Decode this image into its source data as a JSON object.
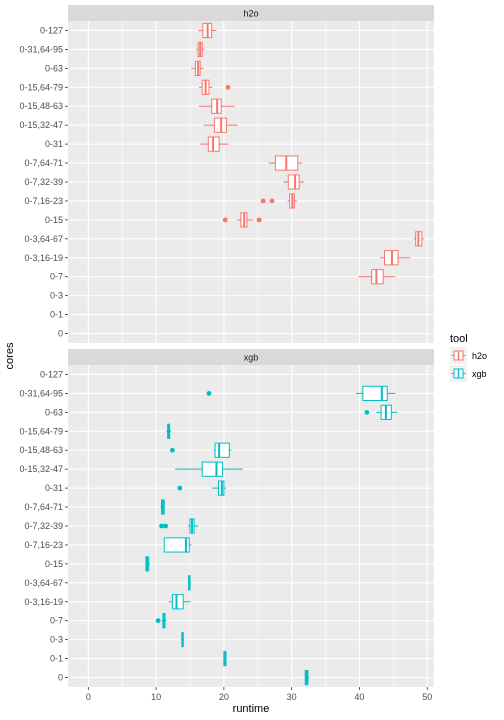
{
  "chart_data": {
    "type": "boxplot",
    "orientation": "horizontal",
    "xlabel": "runtime",
    "ylabel": "cores",
    "xlim": [
      -3,
      51
    ],
    "xticks": [
      0,
      10,
      20,
      30,
      40,
      50
    ],
    "categories": [
      "0-127",
      "0-31,64-95",
      "0-63",
      "0-15,64-79",
      "0-15,48-63",
      "0-15,32-47",
      "0-31",
      "0-7,64-71",
      "0-7,32-39",
      "0-7,16-23",
      "0-15",
      "0-3,64-67",
      "0-3,16-19",
      "0-7",
      "0-3",
      "0-1",
      "0"
    ],
    "legend": {
      "title": "tool",
      "position": "right",
      "entries": [
        {
          "label": "h2o",
          "color": "#F8766D"
        },
        {
          "label": "xgb",
          "color": "#00BFC4"
        }
      ]
    },
    "panels": [
      {
        "label": "h2o",
        "color": "#F8766D",
        "boxes": [
          {
            "category": "0-127",
            "whisker_low": 16.2,
            "q1": 16.9,
            "median": 17.6,
            "q3": 18.2,
            "whisker_high": 18.9,
            "outliers": []
          },
          {
            "category": "0-31,64-95",
            "whisker_low": 15.9,
            "q1": 16.2,
            "median": 16.5,
            "q3": 16.8,
            "whisker_high": 17.1,
            "outliers": []
          },
          {
            "category": "0-63",
            "whisker_low": 15.2,
            "q1": 15.8,
            "median": 16.2,
            "q3": 16.5,
            "whisker_high": 17.0,
            "outliers": []
          },
          {
            "category": "0-15,64-79",
            "whisker_low": 16.3,
            "q1": 16.8,
            "median": 17.3,
            "q3": 17.8,
            "whisker_high": 18.3,
            "outliers": [
              20.6
            ]
          },
          {
            "category": "0-15,48-63",
            "whisker_low": 16.3,
            "q1": 18.2,
            "median": 19.0,
            "q3": 19.6,
            "whisker_high": 21.6,
            "outliers": []
          },
          {
            "category": "0-15,32-47",
            "whisker_low": 17.0,
            "q1": 18.6,
            "median": 19.6,
            "q3": 20.4,
            "whisker_high": 22.0,
            "outliers": []
          },
          {
            "category": "0-31",
            "whisker_low": 16.5,
            "q1": 17.7,
            "median": 18.4,
            "q3": 19.3,
            "whisker_high": 20.7,
            "outliers": []
          },
          {
            "category": "0-7,64-71",
            "whisker_low": 26.6,
            "q1": 27.6,
            "median": 29.2,
            "q3": 30.9,
            "whisker_high": 31.5,
            "outliers": []
          },
          {
            "category": "0-7,32-39",
            "whisker_low": 28.8,
            "q1": 29.5,
            "median": 30.5,
            "q3": 31.1,
            "whisker_high": 31.8,
            "outliers": []
          },
          {
            "category": "0-7,16-23",
            "whisker_low": 29.4,
            "q1": 29.7,
            "median": 30.1,
            "q3": 30.4,
            "whisker_high": 30.8,
            "outliers": [
              25.8,
              27.1
            ]
          },
          {
            "category": "0-15",
            "whisker_low": 21.9,
            "q1": 22.5,
            "median": 23.0,
            "q3": 23.4,
            "whisker_high": 24.3,
            "outliers": [
              20.2,
              25.2
            ]
          },
          {
            "category": "0-3,64-67",
            "whisker_low": 48.0,
            "q1": 48.3,
            "median": 48.7,
            "q3": 49.2,
            "whisker_high": 49.5,
            "outliers": []
          },
          {
            "category": "0-3,16-19",
            "whisker_low": 43.0,
            "q1": 43.7,
            "median": 44.8,
            "q3": 45.7,
            "whisker_high": 47.5,
            "outliers": []
          },
          {
            "category": "0-7",
            "whisker_low": 39.8,
            "q1": 41.8,
            "median": 42.5,
            "q3": 43.5,
            "whisker_high": 45.3,
            "outliers": []
          },
          {
            "category": "0-3",
            "empty": true
          },
          {
            "category": "0-1",
            "empty": true
          },
          {
            "category": "0",
            "empty": true
          }
        ]
      },
      {
        "label": "xgb",
        "color": "#00BFC4",
        "boxes": [
          {
            "category": "0-127",
            "empty": true
          },
          {
            "category": "0-31,64-95",
            "whisker_low": 39.5,
            "q1": 40.5,
            "median": 43.3,
            "q3": 44.1,
            "whisker_high": 45.3,
            "outliers": [
              17.8
            ]
          },
          {
            "category": "0-63",
            "whisker_low": 42.5,
            "q1": 43.2,
            "median": 43.9,
            "q3": 44.7,
            "whisker_high": 45.6,
            "outliers": [
              41.1
            ]
          },
          {
            "category": "0-15,64-79",
            "whisker_low": 11.5,
            "q1": 11.7,
            "median": 11.9,
            "q3": 12.0,
            "whisker_high": 12.2,
            "outliers": []
          },
          {
            "category": "0-15,48-63",
            "whisker_low": 18.5,
            "q1": 18.7,
            "median": 19.3,
            "q3": 20.8,
            "whisker_high": 21.1,
            "outliers": [
              12.4
            ]
          },
          {
            "category": "0-15,32-47",
            "whisker_low": 12.8,
            "q1": 16.8,
            "median": 18.9,
            "q3": 19.8,
            "whisker_high": 22.8,
            "outliers": []
          },
          {
            "category": "0-31",
            "whisker_low": 18.3,
            "q1": 19.2,
            "median": 19.7,
            "q3": 20.0,
            "whisker_high": 20.3,
            "outliers": [
              13.5
            ]
          },
          {
            "category": "0-7,64-71",
            "whisker_low": 10.6,
            "q1": 10.8,
            "median": 11.0,
            "q3": 11.2,
            "whisker_high": 11.3,
            "outliers": []
          },
          {
            "category": "0-7,32-39",
            "whisker_low": 14.7,
            "q1": 15.0,
            "median": 15.3,
            "q3": 15.6,
            "whisker_high": 16.2,
            "outliers": [
              10.8,
              11.4
            ]
          },
          {
            "category": "0-7,16-23",
            "whisker_low": 11.2,
            "q1": 11.2,
            "median": 14.4,
            "q3": 14.9,
            "whisker_high": 15.2,
            "outliers": []
          },
          {
            "category": "0-15",
            "whisker_low": 8.4,
            "q1": 8.5,
            "median": 8.7,
            "q3": 8.9,
            "whisker_high": 9.1,
            "outliers": []
          },
          {
            "category": "0-3,64-67",
            "whisker_low": 14.7,
            "q1": 14.8,
            "median": 14.9,
            "q3": 15.0,
            "whisker_high": 15.1,
            "outliers": []
          },
          {
            "category": "0-3,16-19",
            "whisker_low": 11.9,
            "q1": 12.4,
            "median": 13.0,
            "q3": 14.0,
            "whisker_high": 15.1,
            "outliers": []
          },
          {
            "category": "0-7",
            "whisker_low": 10.8,
            "q1": 11.0,
            "median": 11.2,
            "q3": 11.3,
            "whisker_high": 11.5,
            "outliers": [
              10.3
            ]
          },
          {
            "category": "0-3",
            "whisker_low": 13.7,
            "q1": 13.8,
            "median": 13.9,
            "q3": 14.0,
            "whisker_high": 14.1,
            "outliers": []
          },
          {
            "category": "0-1",
            "whisker_low": 19.9,
            "q1": 20.0,
            "median": 20.2,
            "q3": 20.3,
            "whisker_high": 20.4,
            "outliers": []
          },
          {
            "category": "0",
            "whisker_low": 31.9,
            "q1": 32.0,
            "median": 32.2,
            "q3": 32.4,
            "whisker_high": 32.6,
            "outliers": []
          }
        ]
      }
    ]
  }
}
